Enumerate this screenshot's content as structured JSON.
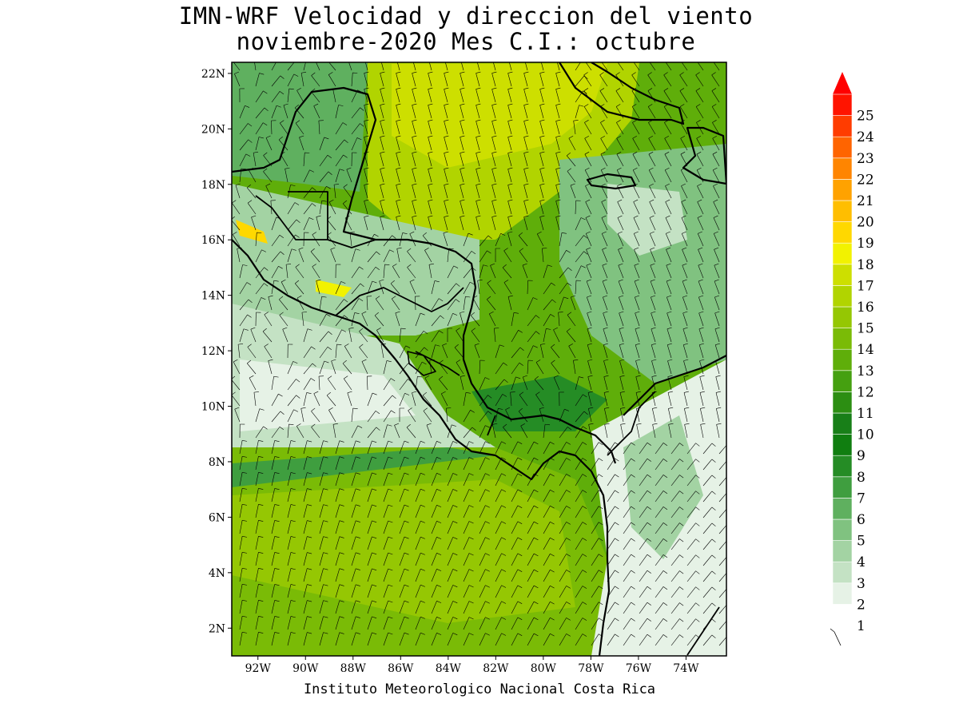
{
  "title": {
    "line1": "IMN-WRF Velocidad y direccion del viento",
    "line2": "noviembre-2020 Mes C.I.: octubre"
  },
  "credit": "Instituto Meteorologico Nacional Costa Rica",
  "map": {
    "lat_range": [
      1,
      22.4
    ],
    "lon_range": [
      -93.1,
      -72.3
    ],
    "lat_ticks": [
      "2N",
      "4N",
      "6N",
      "8N",
      "10N",
      "12N",
      "14N",
      "16N",
      "18N",
      "20N",
      "22N"
    ],
    "lon_ticks": [
      "92W",
      "90W",
      "88W",
      "86W",
      "84W",
      "82W",
      "80W",
      "78W",
      "76W",
      "74W"
    ],
    "features": [
      "wind-speed-shading",
      "wind-barbs",
      "coastlines",
      "country-borders"
    ]
  },
  "colorbar": {
    "labels": [
      "1",
      "2",
      "3",
      "4",
      "5",
      "6",
      "7",
      "8",
      "9",
      "10",
      "11",
      "12",
      "13",
      "14",
      "15",
      "16",
      "17",
      "18",
      "19",
      "20",
      "21",
      "22",
      "23",
      "24",
      "25"
    ],
    "colors": [
      "#ffffff",
      "#e6f2e6",
      "#c4e2c4",
      "#a3d3a3",
      "#80c280",
      "#5fb05f",
      "#3f9e3f",
      "#258c25",
      "#107e10",
      "#187f18",
      "#2c8e12",
      "#45a010",
      "#5fae0a",
      "#7abb06",
      "#95c703",
      "#b1d400",
      "#cddf00",
      "#f2f200",
      "#ffd800",
      "#ffbe00",
      "#ffa200",
      "#ff8500",
      "#ff6400",
      "#ff3c00",
      "#ff1400"
    ],
    "arrow_color": "#ff0000"
  }
}
